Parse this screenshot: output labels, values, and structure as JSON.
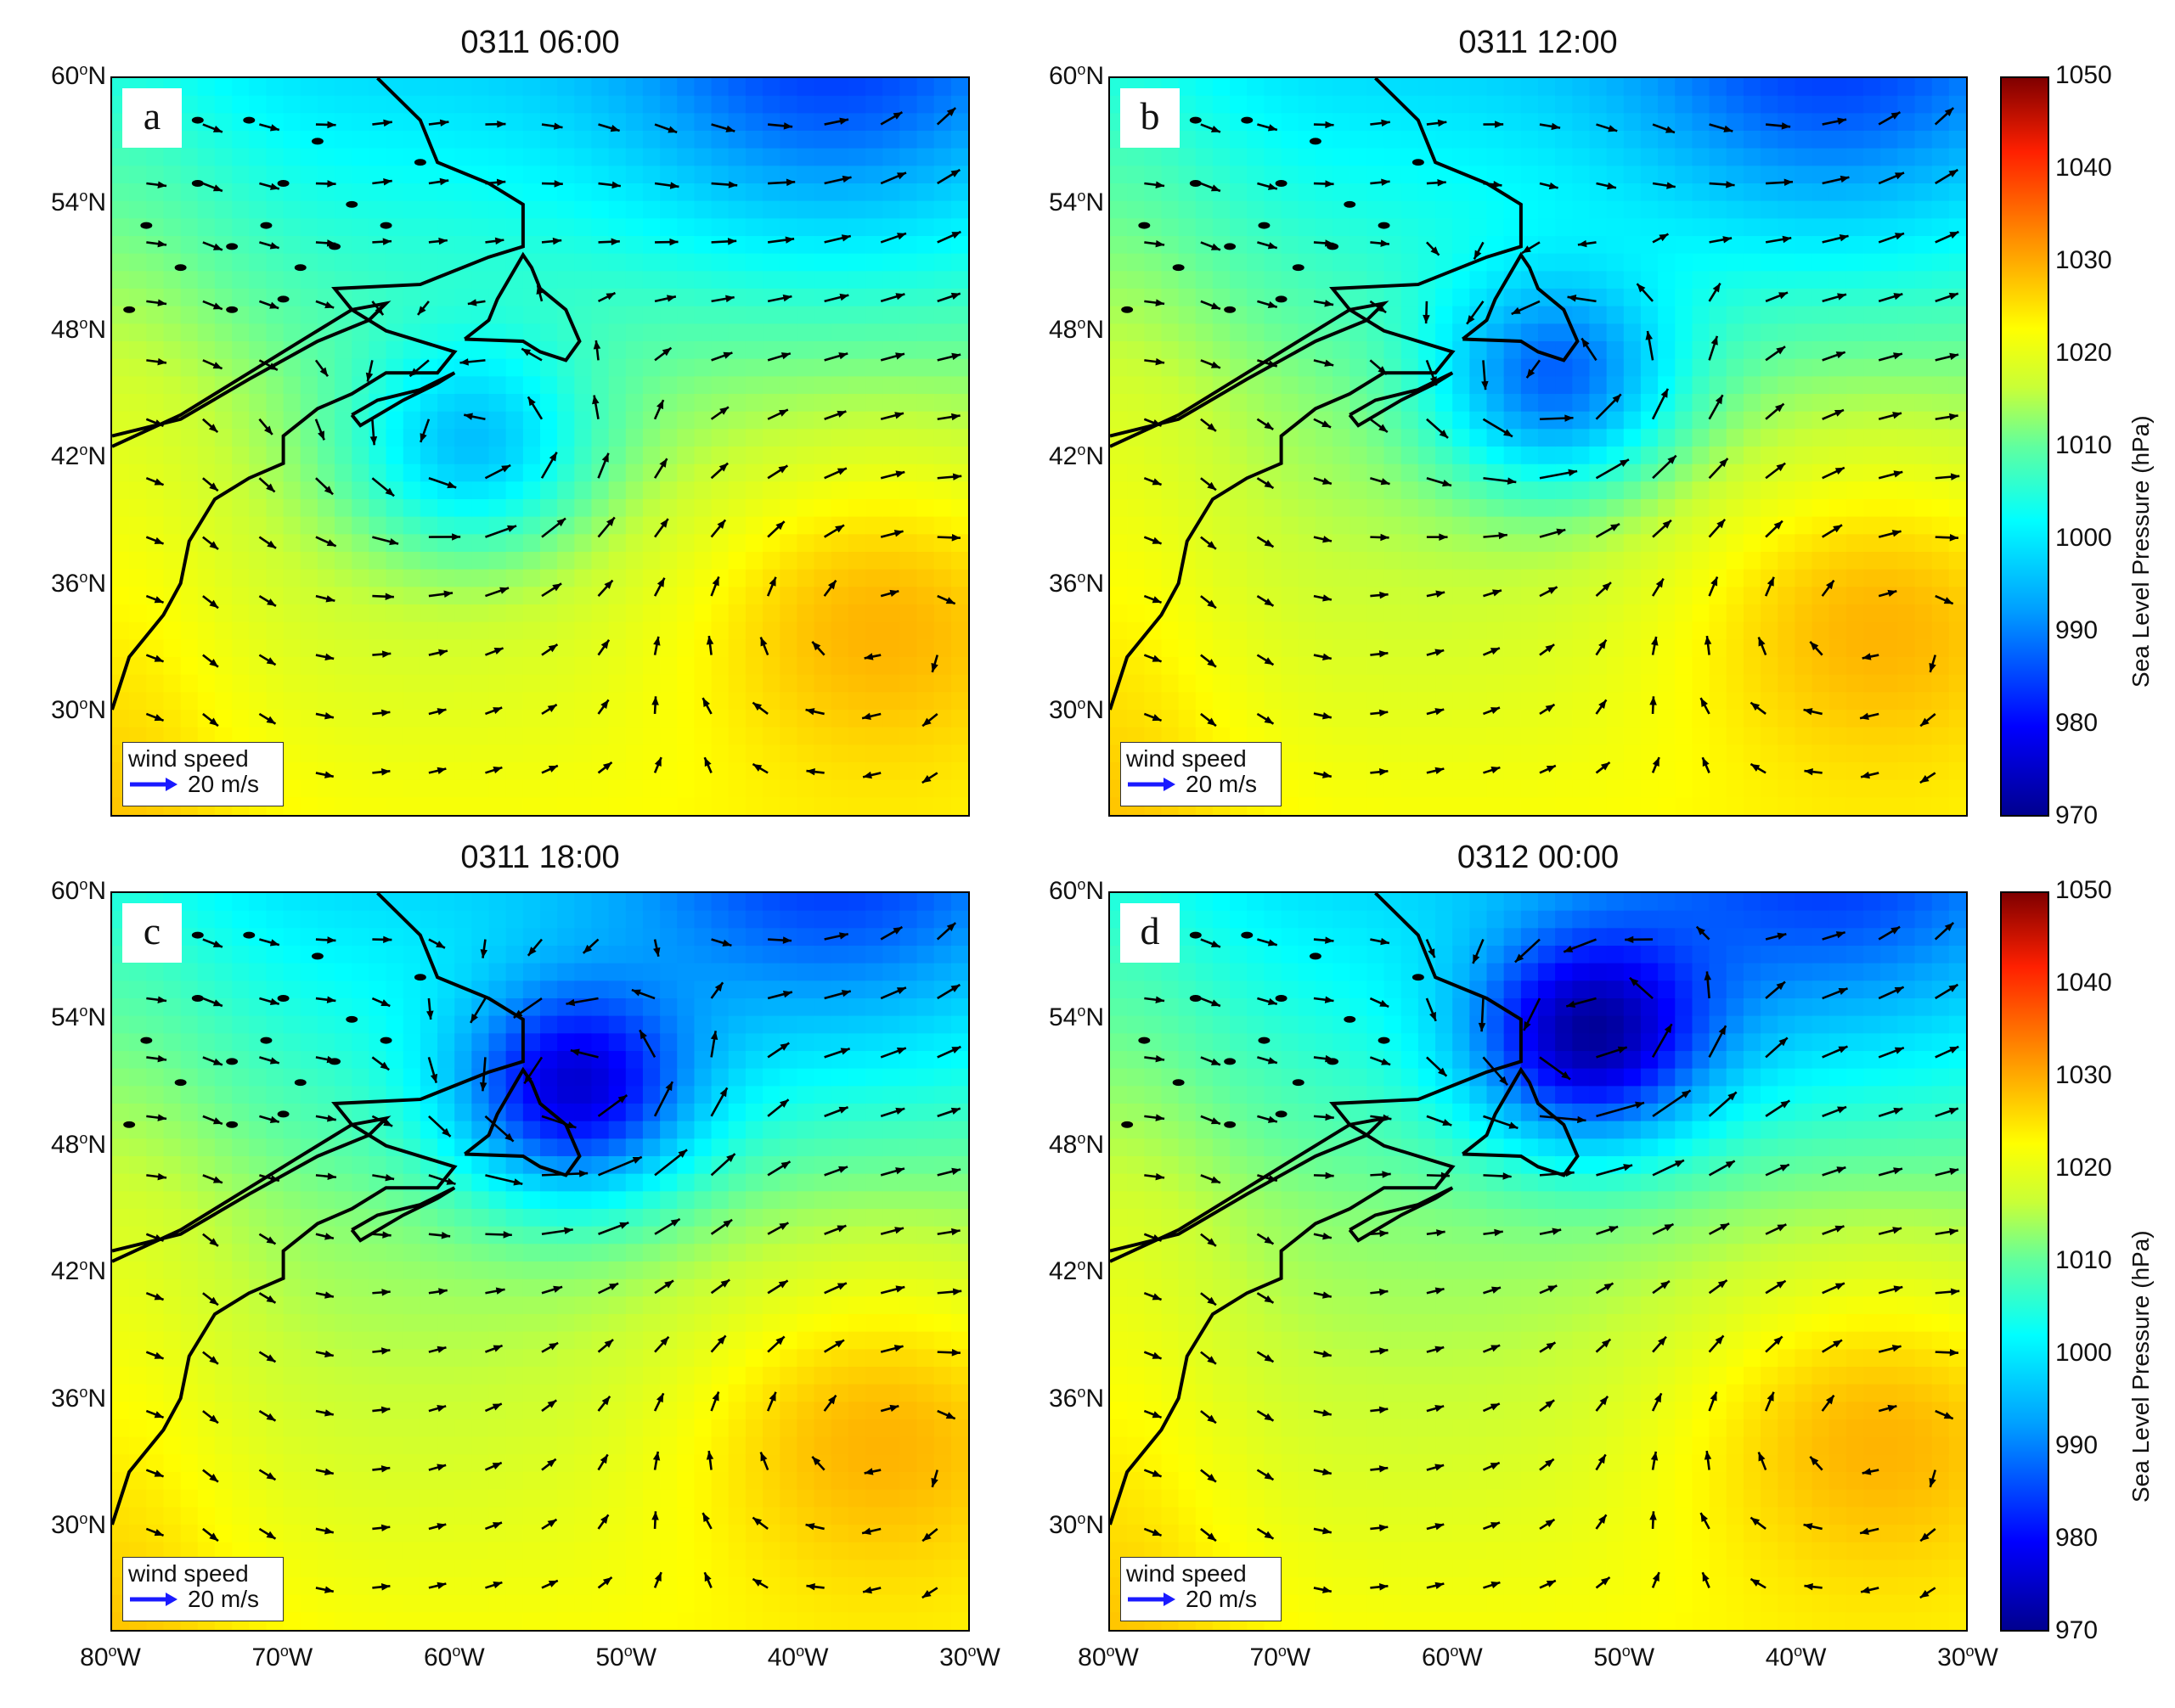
{
  "panels": [
    {
      "id": "a",
      "title": "0311 06:00",
      "letter": "a",
      "low_center": {
        "lon": -59,
        "lat": 42.5
      },
      "low_strength": 0.55
    },
    {
      "id": "b",
      "title": "0311 12:00",
      "letter": "b",
      "low_center": {
        "lon": -54,
        "lat": 45.5
      },
      "low_strength": 0.75
    },
    {
      "id": "c",
      "title": "0311 18:00",
      "letter": "c",
      "low_center": {
        "lon": -53,
        "lat": 50.5
      },
      "low_strength": 0.95
    },
    {
      "id": "d",
      "title": "0312 00:00",
      "letter": "d",
      "low_center": {
        "lon": -52,
        "lat": 53
      },
      "low_strength": 1.0
    }
  ],
  "lat_ticks": [
    "60",
    "54",
    "48",
    "42",
    "36",
    "30"
  ],
  "lat_suffix": "N",
  "lon_ticks": [
    "80",
    "70",
    "60",
    "50",
    "40",
    "30"
  ],
  "lon_suffix": "W",
  "degree_symbol": "o",
  "wind_legend": {
    "title": "wind speed",
    "value": "20 m/s"
  },
  "colorbar": {
    "label": "Sea Level Pressure (hPa)",
    "ticks": [
      "1050",
      "1040",
      "1030",
      "1020",
      "1010",
      "1000",
      "990",
      "980",
      "970"
    ],
    "range": [
      970,
      1050
    ]
  },
  "map_extent": {
    "lon": [
      -80,
      -30
    ],
    "lat": [
      25,
      60
    ]
  },
  "colors": {
    "arrow": "#000000",
    "coast": "#000000",
    "legend_arrow": "#1a1aff"
  }
}
